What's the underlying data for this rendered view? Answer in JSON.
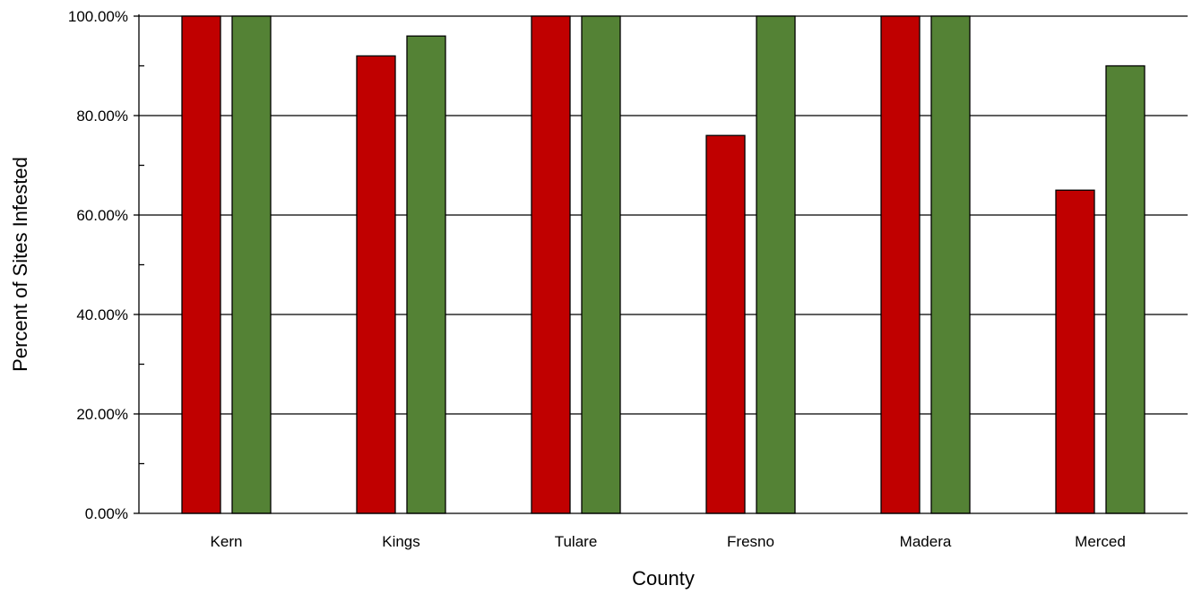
{
  "chart_data": {
    "type": "bar",
    "title": "",
    "xlabel": "County",
    "ylabel": "Percent of Sites Infested",
    "categories": [
      "Kern",
      "Kings",
      "Tulare",
      "Fresno",
      "Madera",
      "Merced"
    ],
    "series": [
      {
        "values": [
          1.0,
          0.92,
          1.0,
          0.76,
          1.0,
          0.65
        ],
        "color": "#c00000"
      },
      {
        "values": [
          1.0,
          0.96,
          1.0,
          1.0,
          1.0,
          0.9
        ],
        "color": "#548235"
      }
    ],
    "ylim": [
      0,
      1
    ],
    "yticks": [
      "0.00%",
      "20.00%",
      "40.00%",
      "60.00%",
      "80.00%",
      "100.00%"
    ],
    "grid": true,
    "legend": "none"
  }
}
